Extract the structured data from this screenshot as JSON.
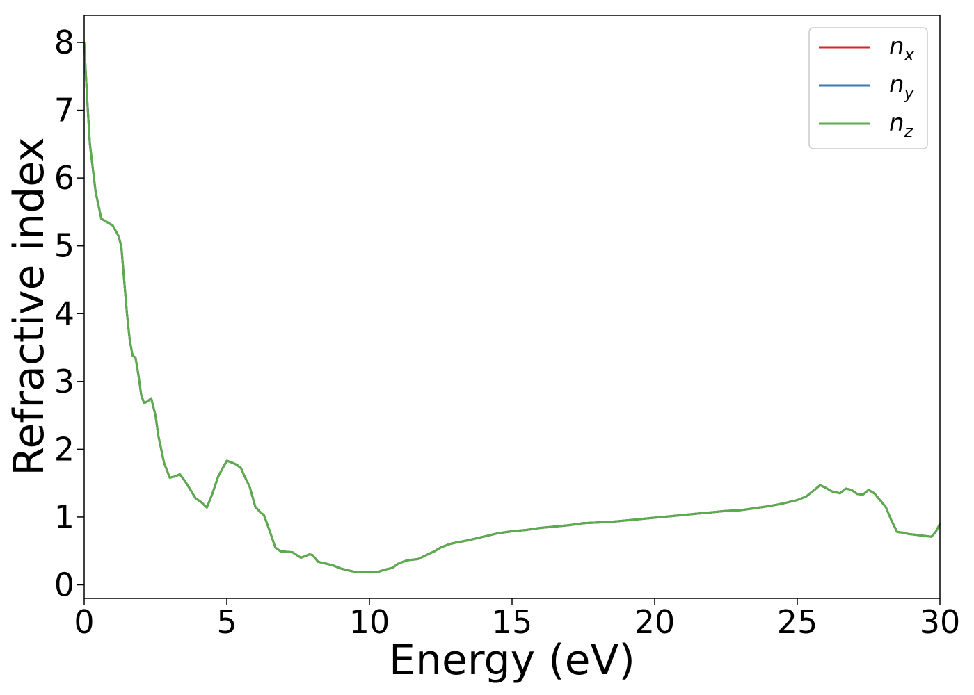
{
  "chart_data": {
    "type": "line",
    "title": "",
    "xlabel": "Energy (eV)",
    "ylabel": "Refractive index",
    "xlim": [
      0,
      30
    ],
    "ylim": [
      -0.2,
      8.4
    ],
    "xticks": [
      "0",
      "5",
      "10",
      "15",
      "20",
      "25",
      "30"
    ],
    "xtick_values": [
      0,
      5,
      10,
      15,
      20,
      25,
      30
    ],
    "yticks": [
      "0",
      "1",
      "2",
      "3",
      "4",
      "5",
      "6",
      "7",
      "8"
    ],
    "ytick_values": [
      0,
      1,
      2,
      3,
      4,
      5,
      6,
      7,
      8
    ],
    "grid": false,
    "legend_position": "top-right",
    "x": [
      0,
      0.1,
      0.2,
      0.4,
      0.6,
      0.8,
      1.0,
      1.2,
      1.3,
      1.4,
      1.5,
      1.6,
      1.7,
      1.8,
      1.9,
      2.0,
      2.1,
      2.2,
      2.35,
      2.5,
      2.6,
      2.8,
      3.0,
      3.2,
      3.35,
      3.5,
      3.7,
      3.9,
      4.1,
      4.3,
      4.5,
      4.7,
      5.0,
      5.2,
      5.35,
      5.5,
      5.6,
      5.8,
      6.0,
      6.2,
      6.3,
      6.5,
      6.7,
      6.9,
      7.0,
      7.3,
      7.6,
      7.9,
      8.0,
      8.2,
      8.5,
      8.7,
      9.0,
      9.2,
      9.5,
      10.0,
      10.3,
      10.5,
      10.8,
      11.0,
      11.3,
      11.5,
      11.7,
      12.0,
      12.3,
      12.5,
      12.8,
      13.0,
      13.5,
      14.0,
      14.5,
      15.0,
      15.5,
      16.0,
      16.5,
      17.0,
      17.5,
      18.0,
      18.5,
      19.0,
      19.5,
      20.0,
      20.5,
      21.0,
      21.5,
      22.0,
      22.5,
      23.0,
      23.5,
      24.0,
      24.5,
      25.0,
      25.3,
      25.6,
      25.8,
      26.0,
      26.2,
      26.5,
      26.7,
      26.9,
      27.1,
      27.3,
      27.5,
      27.7,
      27.9,
      28.1,
      28.3,
      28.5,
      28.7,
      28.9,
      29.1,
      29.3,
      29.5,
      29.7,
      29.85,
      30.0
    ],
    "series": [
      {
        "name": "n_x",
        "color": "#d62728",
        "values": [
          8.0,
          7.2,
          6.5,
          5.8,
          5.4,
          5.35,
          5.3,
          5.15,
          5.0,
          4.5,
          4.0,
          3.6,
          3.38,
          3.35,
          3.1,
          2.8,
          2.68,
          2.7,
          2.75,
          2.5,
          2.2,
          1.8,
          1.58,
          1.6,
          1.63,
          1.55,
          1.42,
          1.28,
          1.22,
          1.14,
          1.35,
          1.6,
          1.83,
          1.8,
          1.77,
          1.72,
          1.62,
          1.45,
          1.15,
          1.06,
          1.03,
          0.8,
          0.55,
          0.49,
          0.49,
          0.48,
          0.4,
          0.45,
          0.44,
          0.34,
          0.31,
          0.29,
          0.24,
          0.22,
          0.19,
          0.19,
          0.19,
          0.22,
          0.25,
          0.31,
          0.36,
          0.37,
          0.38,
          0.44,
          0.5,
          0.55,
          0.6,
          0.62,
          0.66,
          0.71,
          0.76,
          0.79,
          0.81,
          0.84,
          0.86,
          0.88,
          0.91,
          0.92,
          0.93,
          0.95,
          0.97,
          0.99,
          1.01,
          1.03,
          1.05,
          1.07,
          1.09,
          1.1,
          1.13,
          1.16,
          1.2,
          1.25,
          1.3,
          1.4,
          1.47,
          1.43,
          1.38,
          1.35,
          1.42,
          1.4,
          1.34,
          1.33,
          1.4,
          1.35,
          1.25,
          1.15,
          0.95,
          0.78,
          0.77,
          0.75,
          0.74,
          0.73,
          0.72,
          0.71,
          0.78,
          0.9
        ]
      },
      {
        "name": "n_y",
        "color": "#3a7bb5",
        "values": [
          8.0,
          7.2,
          6.5,
          5.8,
          5.4,
          5.35,
          5.3,
          5.15,
          5.0,
          4.5,
          4.0,
          3.6,
          3.38,
          3.35,
          3.1,
          2.8,
          2.68,
          2.7,
          2.75,
          2.5,
          2.2,
          1.8,
          1.58,
          1.6,
          1.63,
          1.55,
          1.42,
          1.28,
          1.22,
          1.14,
          1.35,
          1.6,
          1.83,
          1.8,
          1.77,
          1.72,
          1.62,
          1.45,
          1.15,
          1.06,
          1.03,
          0.8,
          0.55,
          0.49,
          0.49,
          0.48,
          0.4,
          0.45,
          0.44,
          0.34,
          0.31,
          0.29,
          0.24,
          0.22,
          0.19,
          0.19,
          0.19,
          0.22,
          0.25,
          0.31,
          0.36,
          0.37,
          0.38,
          0.44,
          0.5,
          0.55,
          0.6,
          0.62,
          0.66,
          0.71,
          0.76,
          0.79,
          0.81,
          0.84,
          0.86,
          0.88,
          0.91,
          0.92,
          0.93,
          0.95,
          0.97,
          0.99,
          1.01,
          1.03,
          1.05,
          1.07,
          1.09,
          1.1,
          1.13,
          1.16,
          1.2,
          1.25,
          1.3,
          1.4,
          1.47,
          1.43,
          1.38,
          1.35,
          1.42,
          1.4,
          1.34,
          1.33,
          1.4,
          1.35,
          1.25,
          1.15,
          0.95,
          0.78,
          0.77,
          0.75,
          0.74,
          0.73,
          0.72,
          0.71,
          0.78,
          0.9
        ]
      },
      {
        "name": "n_z",
        "color": "#5cab4c",
        "values": [
          8.0,
          7.2,
          6.5,
          5.8,
          5.4,
          5.35,
          5.3,
          5.15,
          5.0,
          4.5,
          4.0,
          3.6,
          3.38,
          3.35,
          3.1,
          2.8,
          2.68,
          2.7,
          2.75,
          2.5,
          2.2,
          1.8,
          1.58,
          1.6,
          1.63,
          1.55,
          1.42,
          1.28,
          1.22,
          1.14,
          1.35,
          1.6,
          1.83,
          1.8,
          1.77,
          1.72,
          1.62,
          1.45,
          1.15,
          1.06,
          1.03,
          0.8,
          0.55,
          0.49,
          0.49,
          0.48,
          0.4,
          0.45,
          0.44,
          0.34,
          0.31,
          0.29,
          0.24,
          0.22,
          0.19,
          0.19,
          0.19,
          0.22,
          0.25,
          0.31,
          0.36,
          0.37,
          0.38,
          0.44,
          0.5,
          0.55,
          0.6,
          0.62,
          0.66,
          0.71,
          0.76,
          0.79,
          0.81,
          0.84,
          0.86,
          0.88,
          0.91,
          0.92,
          0.93,
          0.95,
          0.97,
          0.99,
          1.01,
          1.03,
          1.05,
          1.07,
          1.09,
          1.1,
          1.13,
          1.16,
          1.2,
          1.25,
          1.3,
          1.4,
          1.47,
          1.43,
          1.38,
          1.35,
          1.42,
          1.4,
          1.34,
          1.33,
          1.4,
          1.35,
          1.25,
          1.15,
          0.95,
          0.78,
          0.77,
          0.75,
          0.74,
          0.73,
          0.72,
          0.71,
          0.78,
          0.9
        ]
      }
    ],
    "legend": [
      {
        "base": "n",
        "sub": "x",
        "color": "#d62728"
      },
      {
        "base": "n",
        "sub": "y",
        "color": "#3a7bb5"
      },
      {
        "base": "n",
        "sub": "z",
        "color": "#5cab4c"
      }
    ]
  }
}
